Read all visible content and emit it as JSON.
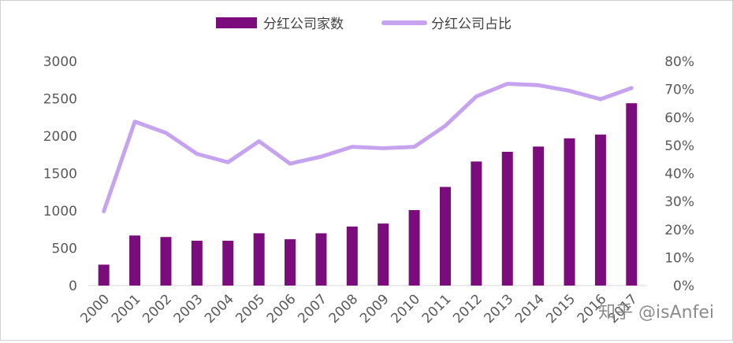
{
  "chart_data": {
    "type": "bar+line",
    "categories": [
      "2000",
      "2001",
      "2002",
      "2003",
      "2004",
      "2005",
      "2006",
      "2007",
      "2008",
      "2009",
      "2010",
      "2011",
      "2012",
      "2013",
      "2014",
      "2015",
      "2016",
      "2017"
    ],
    "series": [
      {
        "name": "分红公司家数",
        "type": "bar",
        "axis": "left",
        "color": "#7b0c7b",
        "values": [
          280,
          670,
          650,
          600,
          600,
          700,
          620,
          700,
          790,
          830,
          1010,
          1320,
          1660,
          1790,
          1860,
          1970,
          2020,
          2440
        ]
      },
      {
        "name": "分红公司占比",
        "type": "line",
        "axis": "right",
        "color": "#c6a3ef",
        "values": [
          0.265,
          0.585,
          0.545,
          0.47,
          0.44,
          0.515,
          0.435,
          0.46,
          0.495,
          0.49,
          0.495,
          0.57,
          0.675,
          0.72,
          0.715,
          0.695,
          0.665,
          0.705
        ]
      }
    ],
    "y_left": {
      "min": 0,
      "max": 3000,
      "ticks": [
        "0",
        "500",
        "1000",
        "1500",
        "2000",
        "2500",
        "3000"
      ]
    },
    "y_right": {
      "min": 0,
      "max": 0.8,
      "ticks": [
        "0%",
        "10%",
        "20%",
        "30%",
        "40%",
        "50%",
        "60%",
        "70%",
        "80%"
      ]
    },
    "legend_position": "top-center",
    "grid": false
  },
  "watermark": "知乎 @isAnfei"
}
